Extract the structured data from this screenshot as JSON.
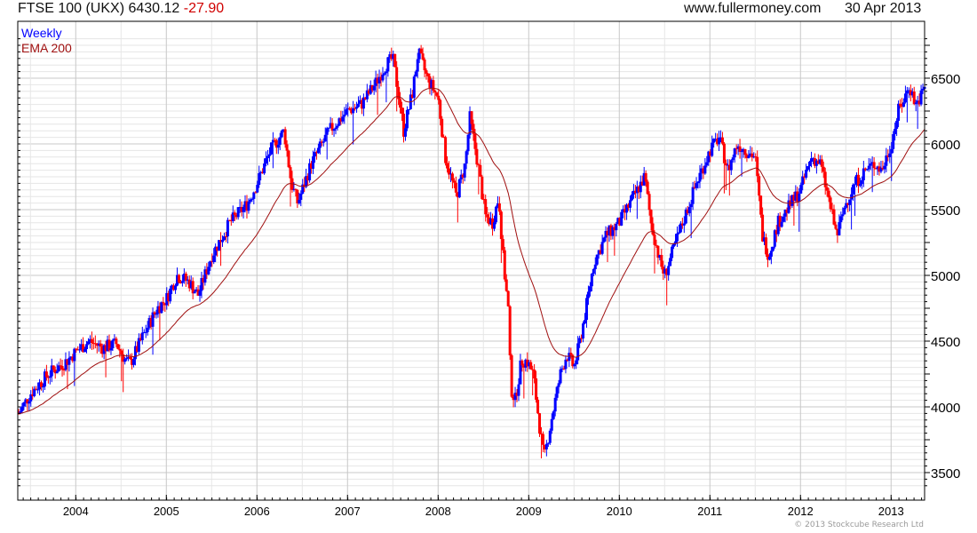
{
  "header": {
    "instrument": "FTSE 100 (UKX) 6430.12",
    "change": "-27.90",
    "site": "www.fullermoney.com",
    "date": "30 Apr 2013"
  },
  "footer": {
    "copyright": "© 2013 Stockcube Research Ltd"
  },
  "colors": {
    "up": "#0000ff",
    "down": "#ff0000",
    "ema": "#a01010",
    "grid": "#e6e6e6",
    "grid_major": "#c8c8c8"
  },
  "chart_data": {
    "type": "line",
    "title": "FTSE 100 (UKX)",
    "legend": [
      {
        "label": "Weekly",
        "color": "#0000ff"
      },
      {
        "label": "EMA 200",
        "color": "#a01010"
      }
    ],
    "legend_placement": "top-left",
    "xlim": [
      2003.36,
      2013.37
    ],
    "ylim": [
      3380,
      6820
    ],
    "x_ticks": [
      "2004",
      "2005",
      "2006",
      "2007",
      "2008",
      "2009",
      "2010",
      "2011",
      "2012",
      "2013"
    ],
    "y_ticks": [
      "3500",
      "4000",
      "4500",
      "5000",
      "5500",
      "6000",
      "6500"
    ],
    "grid": true,
    "series_weekly_waypoints": [
      [
        2003.37,
        3950
      ],
      [
        2003.5,
        4100
      ],
      [
        2003.7,
        4250
      ],
      [
        2003.9,
        4350
      ],
      [
        2004.0,
        4420
      ],
      [
        2004.15,
        4500
      ],
      [
        2004.3,
        4450
      ],
      [
        2004.45,
        4480
      ],
      [
        2004.55,
        4350
      ],
      [
        2004.6,
        4330
      ],
      [
        2004.75,
        4550
      ],
      [
        2004.9,
        4750
      ],
      [
        2005.0,
        4820
      ],
      [
        2005.12,
        5000
      ],
      [
        2005.25,
        4950
      ],
      [
        2005.35,
        4850
      ],
      [
        2005.5,
        5150
      ],
      [
        2005.7,
        5400
      ],
      [
        2005.9,
        5550
      ],
      [
        2006.0,
        5700
      ],
      [
        2006.15,
        5950
      ],
      [
        2006.3,
        6100
      ],
      [
        2006.38,
        5700
      ],
      [
        2006.45,
        5550
      ],
      [
        2006.6,
        5850
      ],
      [
        2006.8,
        6100
      ],
      [
        2007.0,
        6250
      ],
      [
        2007.15,
        6300
      ],
      [
        2007.3,
        6450
      ],
      [
        2007.42,
        6600
      ],
      [
        2007.5,
        6650
      ],
      [
        2007.58,
        6300
      ],
      [
        2007.62,
        6100
      ],
      [
        2007.72,
        6400
      ],
      [
        2007.78,
        6700
      ],
      [
        2007.88,
        6500
      ],
      [
        2008.0,
        6350
      ],
      [
        2008.08,
        5900
      ],
      [
        2008.2,
        5600
      ],
      [
        2008.3,
        5850
      ],
      [
        2008.35,
        6200
      ],
      [
        2008.45,
        5800
      ],
      [
        2008.52,
        5450
      ],
      [
        2008.6,
        5400
      ],
      [
        2008.67,
        5600
      ],
      [
        2008.72,
        5100
      ],
      [
        2008.78,
        4700
      ],
      [
        2008.8,
        4150
      ],
      [
        2008.85,
        4050
      ],
      [
        2008.92,
        4350
      ],
      [
        2008.98,
        4350
      ],
      [
        2009.05,
        4250
      ],
      [
        2009.12,
        3850
      ],
      [
        2009.17,
        3600
      ],
      [
        2009.25,
        3900
      ],
      [
        2009.35,
        4250
      ],
      [
        2009.42,
        4400
      ],
      [
        2009.5,
        4300
      ],
      [
        2009.55,
        4450
      ],
      [
        2009.62,
        4700
      ],
      [
        2009.72,
        5100
      ],
      [
        2009.85,
        5300
      ],
      [
        2010.0,
        5400
      ],
      [
        2010.12,
        5550
      ],
      [
        2010.28,
        5750
      ],
      [
        2010.35,
        5400
      ],
      [
        2010.45,
        5100
      ],
      [
        2010.5,
        5000
      ],
      [
        2010.6,
        5200
      ],
      [
        2010.7,
        5400
      ],
      [
        2010.85,
        5700
      ],
      [
        2011.0,
        5950
      ],
      [
        2011.1,
        6050
      ],
      [
        2011.2,
        5800
      ],
      [
        2011.3,
        6000
      ],
      [
        2011.4,
        5950
      ],
      [
        2011.5,
        5900
      ],
      [
        2011.58,
        5300
      ],
      [
        2011.65,
        5150
      ],
      [
        2011.75,
        5400
      ],
      [
        2011.85,
        5500
      ],
      [
        2012.0,
        5650
      ],
      [
        2012.12,
        5900
      ],
      [
        2012.22,
        5850
      ],
      [
        2012.32,
        5550
      ],
      [
        2012.4,
        5300
      ],
      [
        2012.5,
        5550
      ],
      [
        2012.6,
        5700
      ],
      [
        2012.72,
        5800
      ],
      [
        2012.82,
        5850
      ],
      [
        2012.9,
        5800
      ],
      [
        2013.0,
        6000
      ],
      [
        2013.08,
        6250
      ],
      [
        2013.15,
        6350
      ],
      [
        2013.2,
        6450
      ],
      [
        2013.27,
        6300
      ],
      [
        2013.32,
        6350
      ],
      [
        2013.37,
        6430
      ]
    ]
  }
}
